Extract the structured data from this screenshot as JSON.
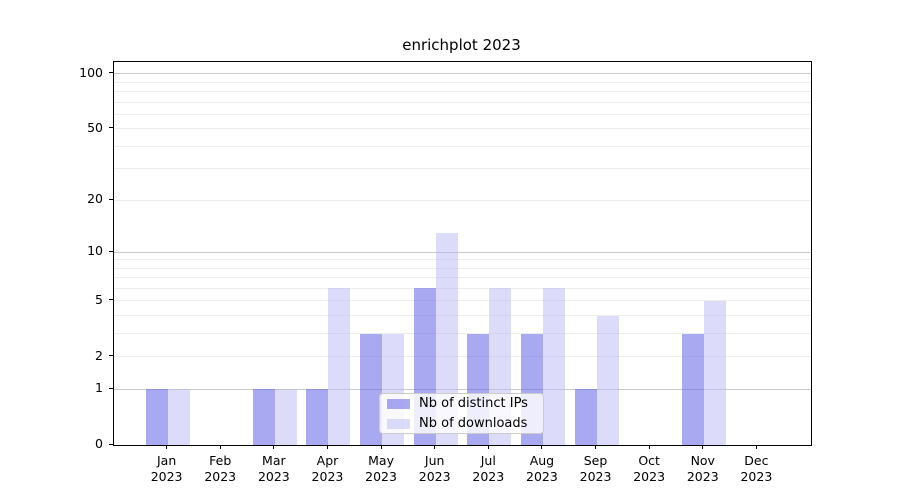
{
  "title": "enrichplot 2023",
  "legend": {
    "items": [
      {
        "label": "Nb of distinct IPs",
        "color": "rgba(98, 98, 232, 0.55)"
      },
      {
        "label": "Nb of downloads",
        "color": "rgba(186, 186, 245, 0.5)"
      }
    ],
    "background_alpha": 0.8
  },
  "chart_data": {
    "type": "bar",
    "title": "enrichplot 2023",
    "categories": [
      "Jan",
      "Feb",
      "Mar",
      "Apr",
      "May",
      "Jun",
      "Jul",
      "Aug",
      "Sep",
      "Oct",
      "Nov",
      "Dec"
    ],
    "year_label": "2023",
    "series": [
      {
        "name": "Nb of distinct IPs",
        "color": "rgba(98, 98, 232, 0.55)",
        "values": [
          1,
          0,
          1,
          1,
          3,
          6,
          3,
          3,
          1,
          0,
          3,
          0
        ]
      },
      {
        "name": "Nb of downloads",
        "color": "rgba(186, 186, 245, 0.5)",
        "values": [
          1,
          0,
          1,
          6,
          3,
          13,
          6,
          6,
          4,
          0,
          5,
          0
        ]
      }
    ],
    "xlabel": "",
    "ylabel": "",
    "y_scale": "log1p",
    "y_ticks": [
      0,
      1,
      2,
      5,
      10,
      20,
      50,
      100
    ],
    "y_major_gridlines": [
      1,
      10,
      100
    ],
    "y_minor_gridlines": [
      2,
      3,
      4,
      5,
      6,
      7,
      8,
      9,
      20,
      30,
      40,
      50,
      60,
      70,
      80,
      90
    ],
    "ylim": [
      0,
      116
    ],
    "grid": true,
    "legend_position": "lower center",
    "grid_color_major": "#c9c9c9",
    "grid_color_minor": "#ededed"
  }
}
